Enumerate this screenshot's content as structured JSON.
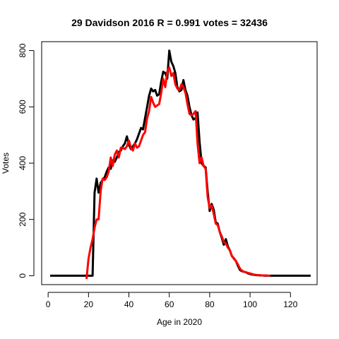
{
  "chart_data": {
    "type": "line",
    "title": "29 Davidson 2016 R = 0.991 votes = 32436",
    "xlabel": "Age in 2020",
    "ylabel": "Votes",
    "xlim": [
      -3.2,
      133.2
    ],
    "ylim": [
      -31.6,
      831.6
    ],
    "x_ticks": [
      0,
      20,
      40,
      60,
      80,
      100,
      120
    ],
    "y_ticks": [
      0,
      200,
      400,
      600,
      800
    ],
    "grid": false,
    "series": [
      {
        "color": "#000000",
        "x": [
          1,
          2,
          3,
          4,
          5,
          6,
          7,
          8,
          9,
          10,
          11,
          12,
          13,
          14,
          15,
          16,
          17,
          18,
          19,
          20,
          21,
          22,
          23,
          24,
          25,
          26,
          27,
          28,
          29,
          30,
          31,
          32,
          33,
          34,
          35,
          36,
          37,
          38,
          39,
          40,
          41,
          42,
          43,
          44,
          45,
          46,
          47,
          48,
          49,
          50,
          51,
          52,
          53,
          54,
          55,
          56,
          57,
          58,
          59,
          60,
          61,
          62,
          63,
          64,
          65,
          66,
          67,
          68,
          69,
          70,
          71,
          72,
          73,
          74,
          75,
          76,
          77,
          78,
          79,
          80,
          81,
          82,
          83,
          84,
          85,
          86,
          87,
          88,
          89,
          90,
          91,
          92,
          93,
          94,
          95,
          96,
          97,
          98,
          99,
          100,
          101,
          102,
          103,
          104,
          105,
          106,
          107,
          108,
          109,
          110,
          111,
          112,
          113,
          114,
          115,
          116,
          117,
          118,
          119,
          120,
          121,
          122,
          123,
          124,
          125,
          126,
          127,
          128,
          129,
          130
        ],
        "y": [
          0,
          0,
          0,
          0,
          0,
          0,
          0,
          0,
          0,
          0,
          0,
          0,
          0,
          0,
          0,
          0,
          0,
          0,
          0,
          0,
          0,
          0,
          295,
          345,
          295,
          330,
          340,
          350,
          370,
          385,
          380,
          410,
          405,
          420,
          440,
          445,
          460,
          470,
          495,
          465,
          450,
          460,
          470,
          485,
          505,
          525,
          520,
          560,
          600,
          640,
          665,
          655,
          660,
          640,
          645,
          690,
          725,
          720,
          700,
          800,
          760,
          745,
          720,
          670,
          655,
          660,
          695,
          660,
          640,
          600,
          570,
          555,
          560,
          580,
          475,
          400,
          390,
          385,
          300,
          230,
          255,
          235,
          190,
          185,
          155,
          135,
          110,
          130,
          105,
          90,
          70,
          62,
          52,
          35,
          20,
          16,
          14,
          12,
          8,
          6,
          4,
          3,
          2,
          2,
          1,
          1,
          0,
          0,
          0,
          0,
          0,
          0,
          0,
          0,
          0,
          0,
          0,
          0,
          0,
          0,
          0,
          0,
          0,
          0,
          0,
          0,
          0,
          0,
          0,
          0
        ]
      },
      {
        "color": "#ff0000",
        "x": [
          19,
          20,
          21,
          22,
          23,
          24,
          25,
          26,
          27,
          28,
          29,
          30,
          31,
          32,
          33,
          34,
          35,
          36,
          37,
          38,
          39,
          40,
          41,
          42,
          43,
          44,
          45,
          46,
          47,
          48,
          49,
          50,
          51,
          52,
          53,
          54,
          55,
          56,
          57,
          58,
          59,
          60,
          61,
          62,
          63,
          64,
          65,
          66,
          67,
          68,
          69,
          70,
          71,
          72,
          73,
          74,
          75,
          76,
          77,
          78,
          79,
          80,
          81,
          82,
          83,
          84,
          85,
          86,
          87,
          88,
          89,
          90,
          91,
          92,
          93,
          94,
          95,
          96,
          97,
          98,
          99,
          100,
          101,
          102,
          103,
          104,
          105,
          106,
          107,
          108,
          109,
          110
        ],
        "y": [
          -12,
          60,
          100,
          130,
          170,
          200,
          200,
          300,
          345,
          340,
          350,
          370,
          420,
          390,
          430,
          445,
          420,
          455,
          455,
          450,
          460,
          480,
          455,
          445,
          470,
          455,
          460,
          480,
          500,
          510,
          560,
          585,
          635,
          615,
          600,
          605,
          610,
          650,
          700,
          670,
          725,
          740,
          710,
          720,
          680,
          665,
          660,
          680,
          670,
          650,
          610,
          575,
          570,
          575,
          585,
          470,
          400,
          420,
          390,
          380,
          280,
          240,
          250,
          220,
          185,
          180,
          155,
          140,
          120,
          115,
          100,
          90,
          70,
          60,
          52,
          40,
          25,
          18,
          14,
          12,
          10,
          8,
          6,
          4,
          3,
          2,
          2,
          1,
          1,
          1,
          0,
          0
        ]
      }
    ]
  }
}
